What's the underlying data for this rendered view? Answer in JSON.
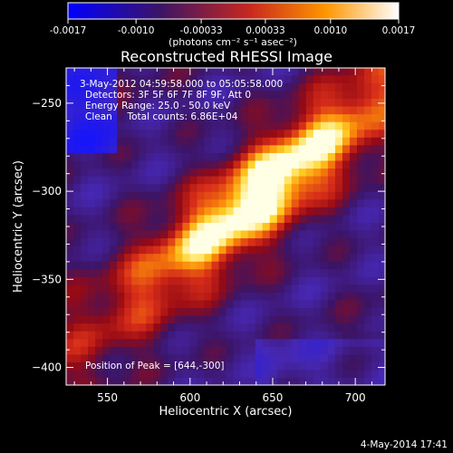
{
  "chart_data": {
    "type": "heatmap",
    "title": "Reconstructed RHESSI Image",
    "xlabel": "Heliocentric X (arcsec)",
    "ylabel": "Heliocentric Y (arcsec)",
    "xlim": [
      525,
      718
    ],
    "ylim": [
      -410,
      -230
    ],
    "xticks": [
      550,
      600,
      650,
      700
    ],
    "yticks": [
      -250,
      -300,
      -350,
      -400
    ],
    "colorbar": {
      "range": [
        -0.0017,
        0.0017
      ],
      "tick_labels": [
        "-0.0017",
        "-0.0010",
        "-0.00033",
        "0.00033",
        "0.0010",
        "0.0017"
      ],
      "tick_values": [
        -0.0017,
        -0.001,
        -0.00033,
        0.00033,
        0.001,
        0.0017
      ],
      "unit_label": "(photons cm⁻² s⁻¹ asec⁻²)"
    },
    "annotations": [
      "3-May-2012 04:59:58.000 to 05:05:58.000",
      "Detectors: 3F 5F 6F 7F 8F 9F, Att 0",
      "Energy Range: 25.0 - 50.0 keV",
      "Clean     Total counts: 6.86E+04"
    ],
    "peak_label": "Position of Peak = [644,-300]",
    "peak": [
      644,
      -300
    ],
    "colors": {
      "negative": "#1414ff",
      "zero": "#3c1466",
      "mid": "#d2321e",
      "positive": "#ffffe6"
    }
  },
  "footer": {
    "timestamp": "4-May-2014 17:41"
  }
}
